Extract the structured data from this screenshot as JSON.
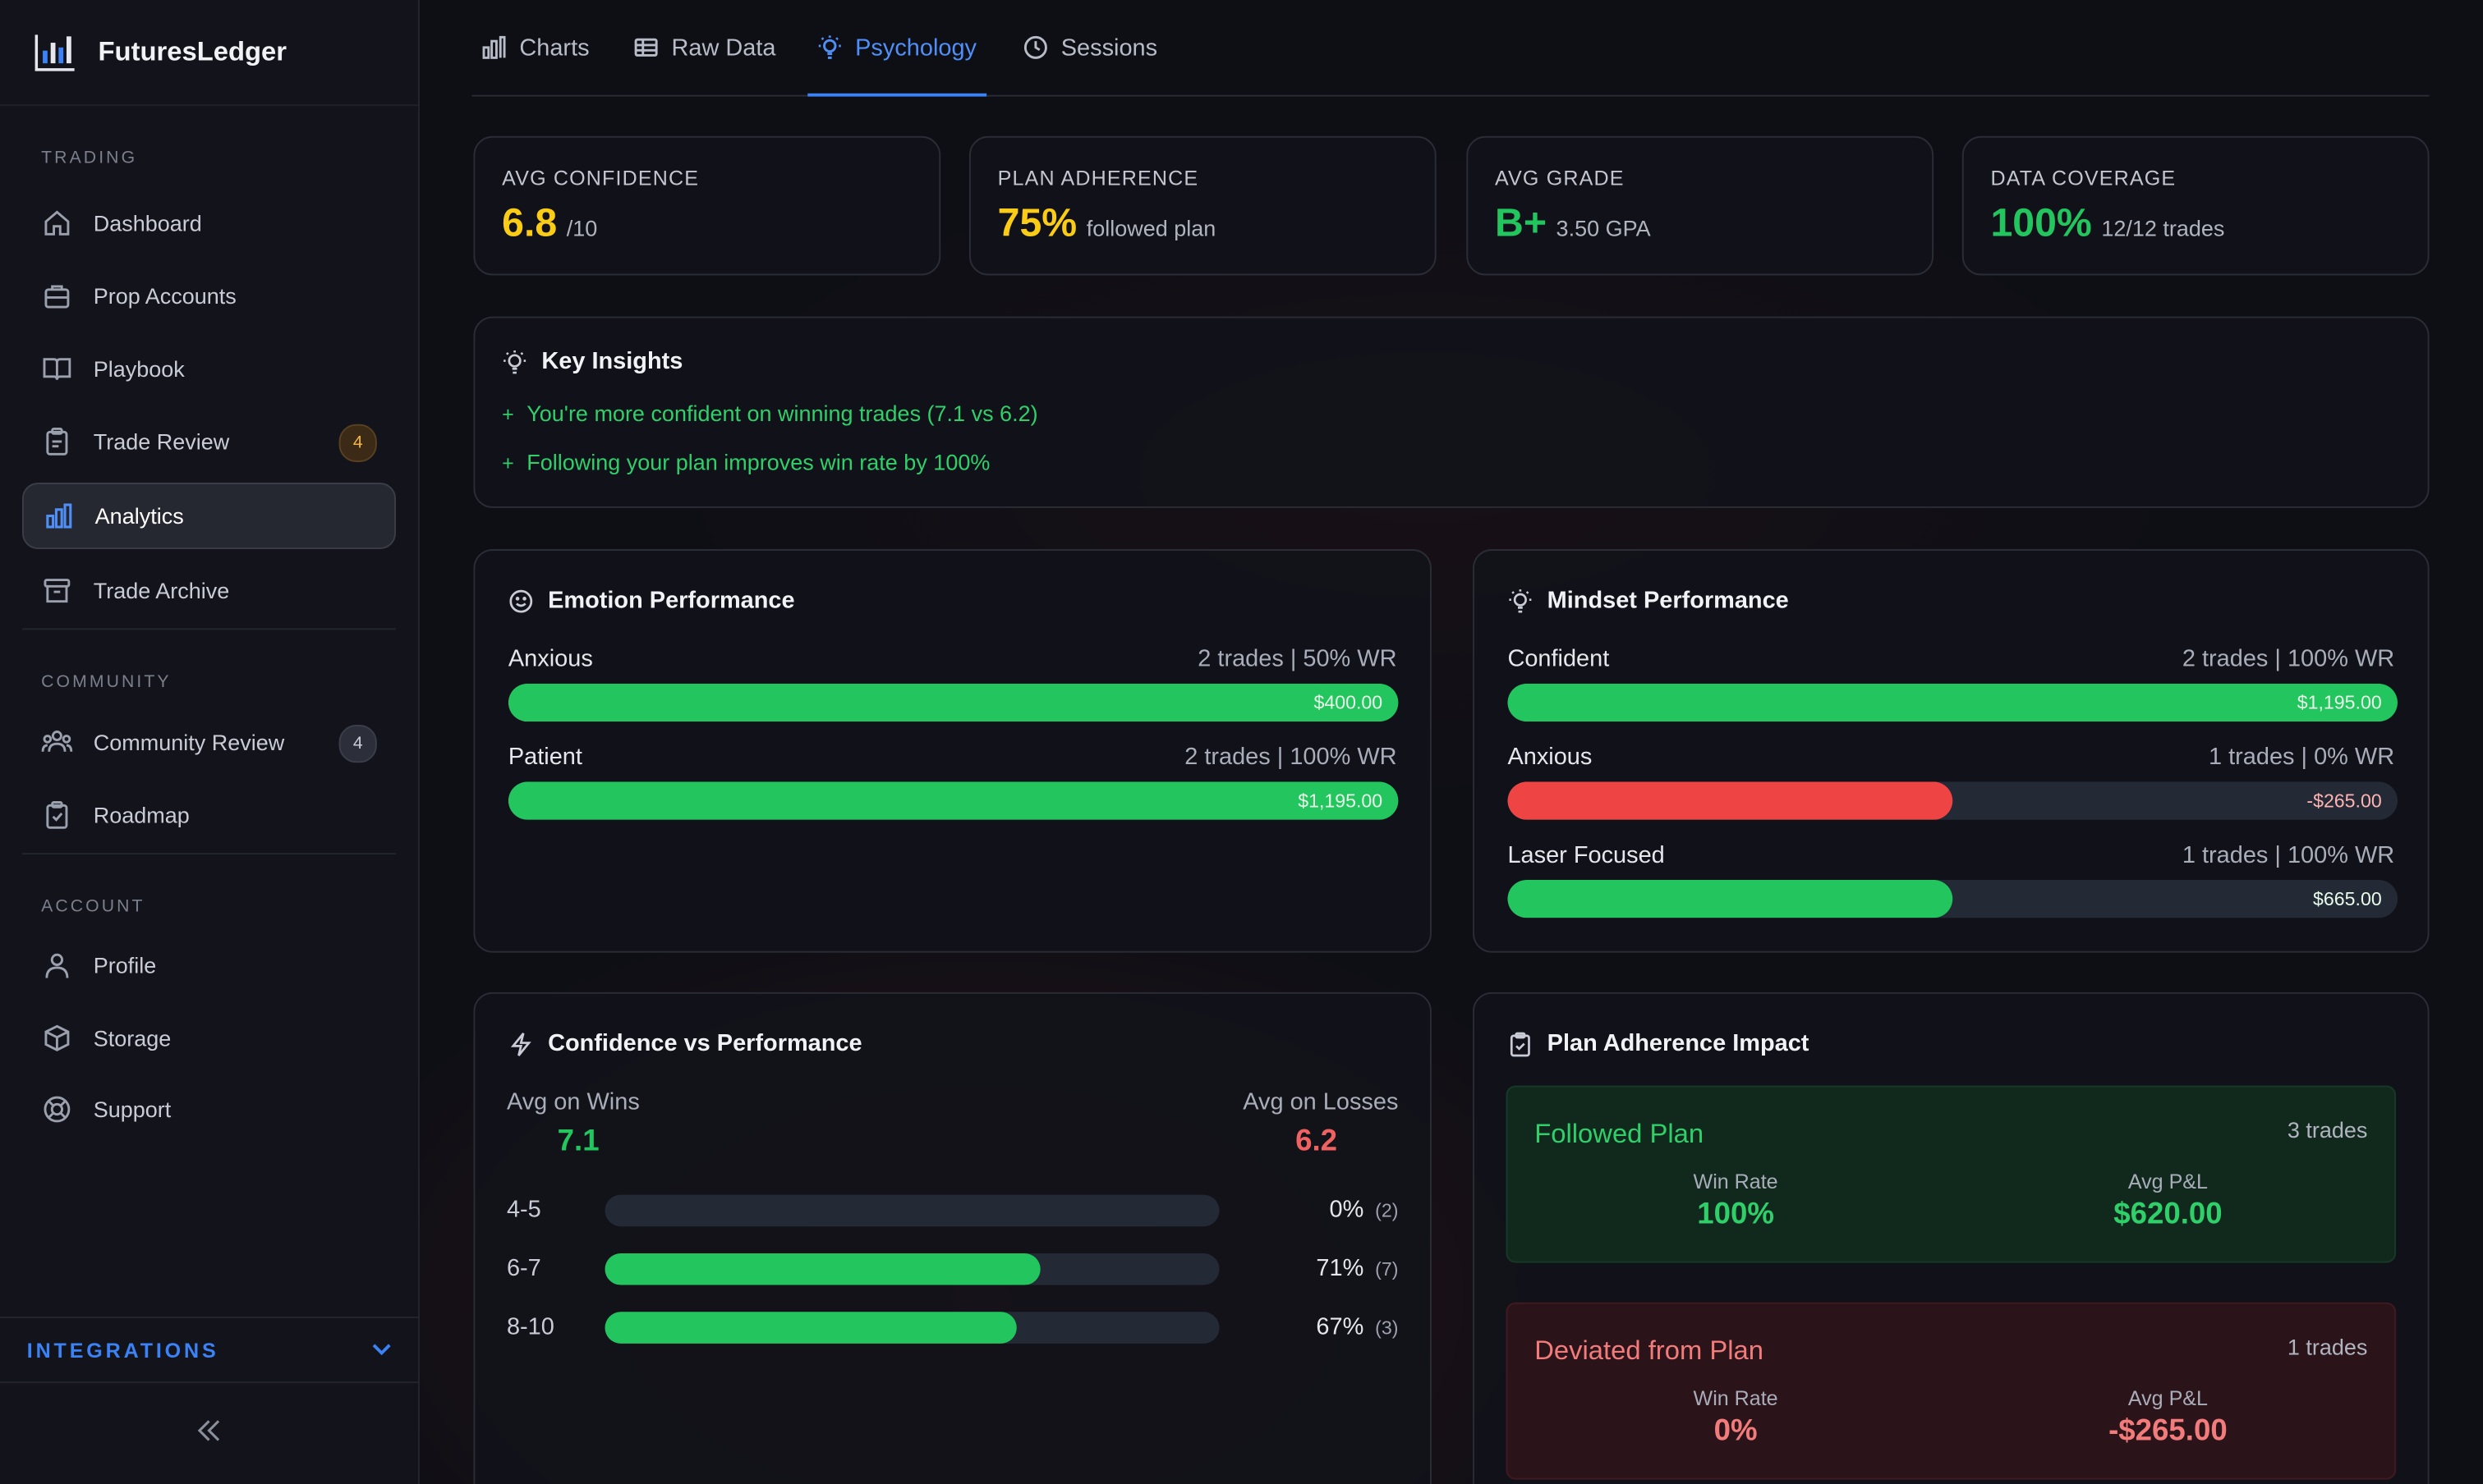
{
  "app": {
    "name": "FuturesLedger"
  },
  "sidebar": {
    "sections": {
      "trading": "TRADING",
      "community": "COMMUNITY",
      "account": "ACCOUNT"
    },
    "items": {
      "dashboard": "Dashboard",
      "prop_accounts": "Prop Accounts",
      "playbook": "Playbook",
      "trade_review": "Trade Review",
      "analytics": "Analytics",
      "trade_archive": "Trade Archive",
      "community_review": "Community Review",
      "roadmap": "Roadmap",
      "profile": "Profile",
      "storage": "Storage",
      "support": "Support"
    },
    "badges": {
      "trade_review": "4",
      "community_review": "4"
    },
    "integrations": "INTEGRATIONS",
    "active_item": "analytics"
  },
  "tabs": {
    "charts": "Charts",
    "raw_data": "Raw Data",
    "psychology": "Psychology",
    "sessions": "Sessions",
    "active": "psychology"
  },
  "stats": {
    "confidence": {
      "label": "AVG CONFIDENCE",
      "value": "6.8",
      "suffix": "/10",
      "color": "#facc15"
    },
    "adherence": {
      "label": "PLAN ADHERENCE",
      "value": "75%",
      "suffix": "followed plan",
      "color": "#facc15"
    },
    "grade": {
      "label": "AVG GRADE",
      "value": "B+",
      "suffix": "3.50 GPA",
      "color": "#22c55e"
    },
    "coverage": {
      "label": "DATA COVERAGE",
      "value": "100%",
      "suffix": "12/12 trades",
      "color": "#22c55e"
    }
  },
  "insights": {
    "title": "Key Insights",
    "items": [
      "You're more confident on winning trades (7.1 vs 6.2)",
      "Following your plan improves win rate by 100%"
    ]
  },
  "emotion": {
    "title": "Emotion Performance",
    "rows": [
      {
        "label": "Anxious",
        "meta": "2 trades | 50% WR",
        "amount": "$400.00",
        "fill": 1.0,
        "positive": true
      },
      {
        "label": "Patient",
        "meta": "2 trades | 100% WR",
        "amount": "$1,195.00",
        "fill": 1.0,
        "positive": true
      }
    ]
  },
  "mindset": {
    "title": "Mindset Performance",
    "rows": [
      {
        "label": "Confident",
        "meta": "2 trades | 100% WR",
        "amount": "$1,195.00",
        "fill": 1.0,
        "positive": true
      },
      {
        "label": "Anxious",
        "meta": "1 trades | 0% WR",
        "amount": "-$265.00",
        "fill": 0.5,
        "positive": false
      },
      {
        "label": "Laser Focused",
        "meta": "1 trades | 100% WR",
        "amount": "$665.00",
        "fill": 0.5,
        "positive": true
      }
    ]
  },
  "confidence_perf": {
    "title": "Confidence vs Performance",
    "wins_label": "Avg on Wins",
    "wins_value": "7.1",
    "losses_label": "Avg on Losses",
    "losses_value": "6.2",
    "rows": [
      {
        "range": "4-5",
        "pct": "0%",
        "n": "(2)",
        "fill": 0.0
      },
      {
        "range": "6-7",
        "pct": "71%",
        "n": "(7)",
        "fill": 0.71
      },
      {
        "range": "8-10",
        "pct": "67%",
        "n": "(3)",
        "fill": 0.67
      }
    ]
  },
  "plan_adherence": {
    "title": "Plan Adherence Impact",
    "followed": {
      "title": "Followed Plan",
      "count": "3 trades",
      "win_rate_label": "Win Rate",
      "win_rate": "100%",
      "pnl_label": "Avg P&L",
      "pnl": "$620.00"
    },
    "deviated": {
      "title": "Deviated from Plan",
      "count": "1 trades",
      "win_rate_label": "Win Rate",
      "win_rate": "0%",
      "pnl_label": "Avg P&L",
      "pnl": "-$265.00"
    }
  },
  "colors": {
    "green": "#22c55e",
    "red": "#ef4444",
    "accent": "#3b82f6",
    "amber": "#facc15"
  }
}
